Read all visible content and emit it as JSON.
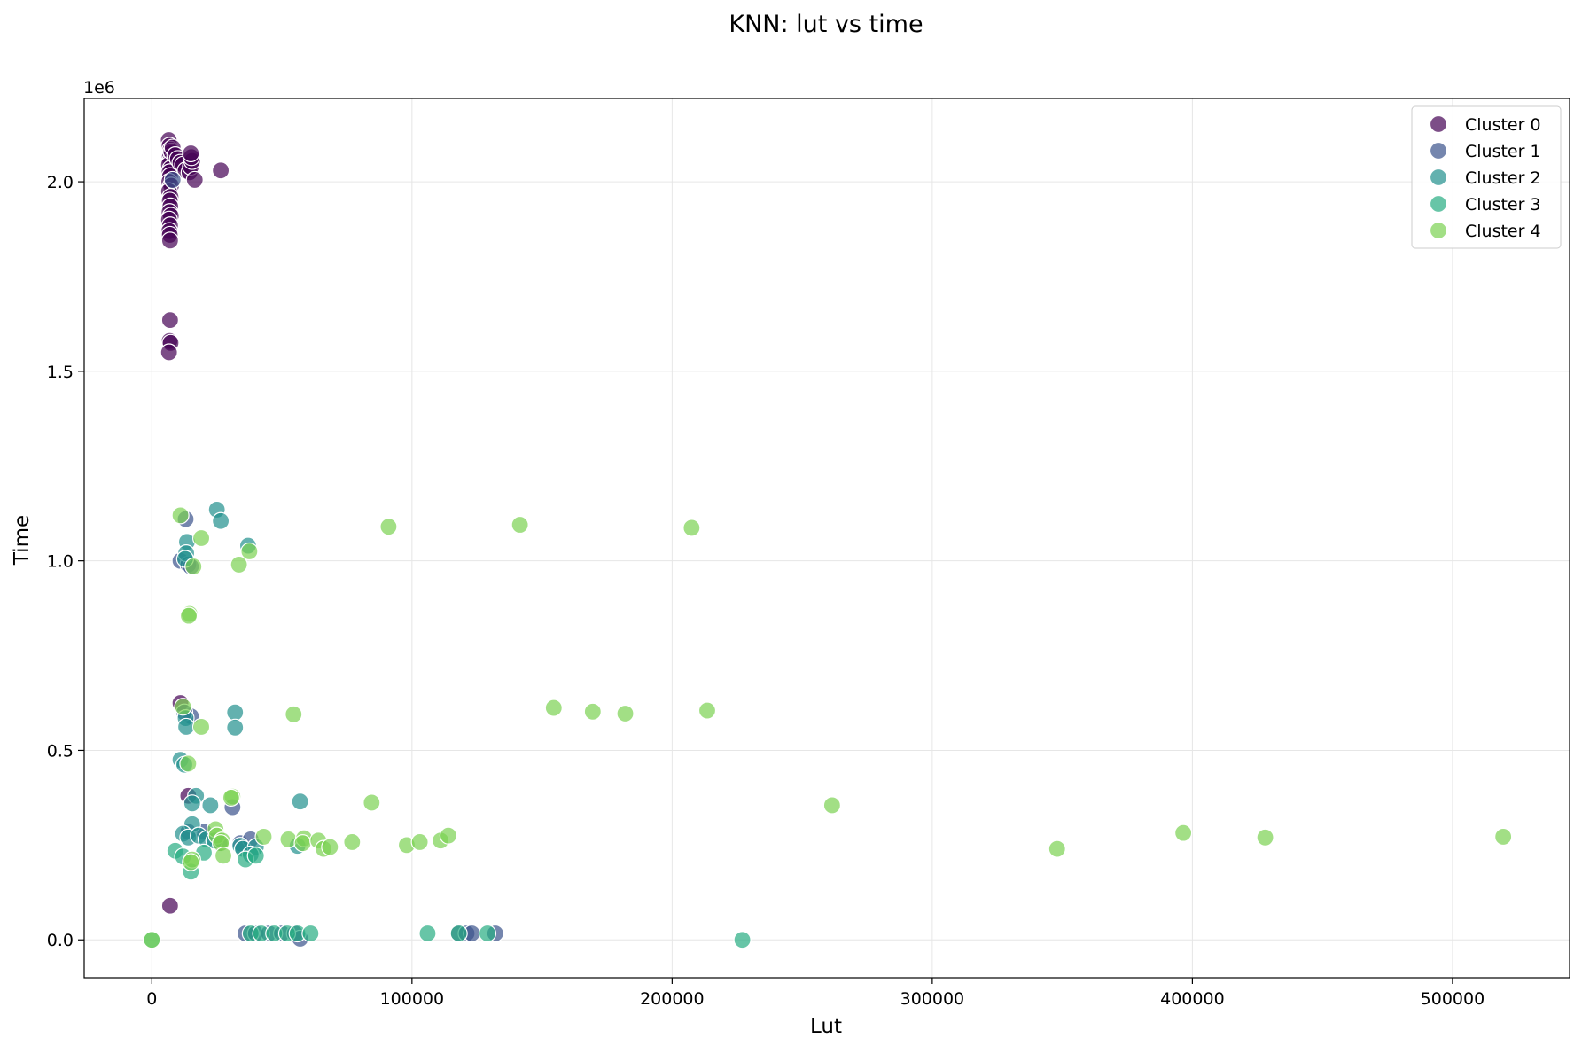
{
  "chart_data": {
    "type": "scatter",
    "title": "KNN: lut vs time",
    "xlabel": "Lut",
    "ylabel": "Time",
    "y_offset_label": "1e6",
    "xlim": [
      -26000,
      545000
    ],
    "ylim": [
      -100000,
      2220000
    ],
    "x_ticks": [
      0,
      100000,
      200000,
      300000,
      400000,
      500000
    ],
    "x_tick_labels": [
      "0",
      "100000",
      "200000",
      "300000",
      "400000",
      "500000"
    ],
    "y_ticks": [
      0,
      500000,
      1000000,
      1500000,
      2000000
    ],
    "y_tick_labels": [
      "0.0",
      "0.5",
      "1.0",
      "1.5",
      "2.0"
    ],
    "grid": true,
    "legend_position": "top-right",
    "series": [
      {
        "name": "Cluster 0",
        "color": "#440154",
        "points": [
          [
            6500,
            2110000
          ],
          [
            6800,
            2095000
          ],
          [
            7200,
            2085000
          ],
          [
            7600,
            2075000
          ],
          [
            6900,
            2065000
          ],
          [
            7100,
            2055000
          ],
          [
            6600,
            2045000
          ],
          [
            7300,
            2035000
          ],
          [
            6800,
            2025000
          ],
          [
            7000,
            2015000
          ],
          [
            6700,
            2000000
          ],
          [
            7400,
            1990000
          ],
          [
            6600,
            1975000
          ],
          [
            7200,
            1960000
          ],
          [
            6900,
            1950000
          ],
          [
            7100,
            1935000
          ],
          [
            6800,
            1920000
          ],
          [
            7300,
            1910000
          ],
          [
            6600,
            1900000
          ],
          [
            7000,
            1885000
          ],
          [
            6700,
            1870000
          ],
          [
            6900,
            1860000
          ],
          [
            7000,
            1845000
          ],
          [
            7500,
            2080000
          ],
          [
            8000,
            2090000
          ],
          [
            9000,
            2070000
          ],
          [
            10000,
            2060000
          ],
          [
            11000,
            2050000
          ],
          [
            12000,
            2045000
          ],
          [
            13000,
            2030000
          ],
          [
            14500,
            2025000
          ],
          [
            15000,
            2040000
          ],
          [
            15500,
            2055000
          ],
          [
            15200,
            2065000
          ],
          [
            15000,
            2075000
          ],
          [
            16500,
            2005000
          ],
          [
            26500,
            2030000
          ],
          [
            7000,
            1635000
          ],
          [
            6800,
            1580000
          ],
          [
            7200,
            1575000
          ],
          [
            6600,
            1550000
          ],
          [
            11000,
            625000
          ],
          [
            14000,
            380000
          ],
          [
            7000,
            90000
          ]
        ]
      },
      {
        "name": "Cluster 1",
        "color": "#3b528b",
        "points": [
          [
            8000,
            2005000
          ],
          [
            11000,
            1000000
          ],
          [
            13000,
            1110000
          ],
          [
            14000,
            990000
          ],
          [
            15000,
            985000
          ],
          [
            15000,
            590000
          ],
          [
            12500,
            600000
          ],
          [
            31000,
            350000
          ],
          [
            20000,
            285000
          ],
          [
            14000,
            285000
          ],
          [
            26000,
            255000
          ],
          [
            34000,
            255000
          ],
          [
            38000,
            265000
          ],
          [
            36000,
            17000
          ],
          [
            40000,
            17000
          ],
          [
            45000,
            17000
          ],
          [
            50000,
            17000
          ],
          [
            55000,
            17000
          ],
          [
            57000,
            3000
          ],
          [
            118000,
            17000
          ],
          [
            121000,
            17000
          ],
          [
            123000,
            17000
          ],
          [
            132000,
            17000
          ]
        ]
      },
      {
        "name": "Cluster 2",
        "color": "#21908d",
        "points": [
          [
            25000,
            1135000
          ],
          [
            26500,
            1105000
          ],
          [
            37000,
            1040000
          ],
          [
            13500,
            1050000
          ],
          [
            13200,
            1020000
          ],
          [
            12800,
            1005000
          ],
          [
            32000,
            600000
          ],
          [
            32000,
            560000
          ],
          [
            13000,
            585000
          ],
          [
            13200,
            562000
          ],
          [
            11000,
            475000
          ],
          [
            12500,
            462000
          ],
          [
            17000,
            380000
          ],
          [
            22500,
            355000
          ],
          [
            15500,
            360000
          ],
          [
            57000,
            365000
          ],
          [
            15500,
            305000
          ],
          [
            12000,
            280000
          ],
          [
            14000,
            270000
          ],
          [
            18000,
            275000
          ],
          [
            21000,
            265000
          ],
          [
            24000,
            262000
          ],
          [
            34000,
            248000
          ],
          [
            35000,
            240000
          ],
          [
            40000,
            245000
          ],
          [
            56000,
            248000
          ],
          [
            38000,
            225000
          ]
        ]
      },
      {
        "name": "Cluster 3",
        "color": "#27ad81",
        "points": [
          [
            0,
            0
          ],
          [
            9000,
            235000
          ],
          [
            12000,
            220000
          ],
          [
            15000,
            180000
          ],
          [
            20000,
            230000
          ],
          [
            36000,
            212000
          ],
          [
            40000,
            222000
          ],
          [
            38000,
            17000
          ],
          [
            42000,
            17000
          ],
          [
            47000,
            17000
          ],
          [
            52000,
            17000
          ],
          [
            56000,
            17000
          ],
          [
            61000,
            17000
          ],
          [
            106000,
            17000
          ],
          [
            118000,
            17000
          ],
          [
            129000,
            17000
          ],
          [
            227000,
            0
          ]
        ]
      },
      {
        "name": "Cluster 4",
        "color": "#7ad151",
        "points": [
          [
            11000,
            1120000
          ],
          [
            19000,
            1060000
          ],
          [
            16000,
            985000
          ],
          [
            37500,
            1025000
          ],
          [
            33500,
            990000
          ],
          [
            91000,
            1090000
          ],
          [
            141500,
            1095000
          ],
          [
            207500,
            1087000
          ],
          [
            14500,
            860000
          ],
          [
            14200,
            855000
          ],
          [
            12000,
            615000
          ],
          [
            19000,
            562000
          ],
          [
            54500,
            595000
          ],
          [
            154500,
            612000
          ],
          [
            169500,
            602000
          ],
          [
            182000,
            597000
          ],
          [
            213500,
            605000
          ],
          [
            14000,
            465000
          ],
          [
            31000,
            378000
          ],
          [
            30500,
            375000
          ],
          [
            84500,
            362000
          ],
          [
            261500,
            355000
          ],
          [
            24500,
            292000
          ],
          [
            25000,
            275000
          ],
          [
            27000,
            262000
          ],
          [
            26500,
            255000
          ],
          [
            27500,
            222000
          ],
          [
            15500,
            212000
          ],
          [
            15000,
            205000
          ],
          [
            43000,
            272000
          ],
          [
            52500,
            265000
          ],
          [
            58500,
            268000
          ],
          [
            58000,
            255000
          ],
          [
            64000,
            262000
          ],
          [
            66000,
            240000
          ],
          [
            68500,
            245000
          ],
          [
            77000,
            258000
          ],
          [
            98000,
            250000
          ],
          [
            103000,
            258000
          ],
          [
            111000,
            262000
          ],
          [
            114000,
            275000
          ],
          [
            348000,
            240000
          ],
          [
            396500,
            282000
          ],
          [
            428000,
            270000
          ],
          [
            519500,
            272000
          ],
          [
            0,
            0
          ]
        ]
      }
    ]
  }
}
